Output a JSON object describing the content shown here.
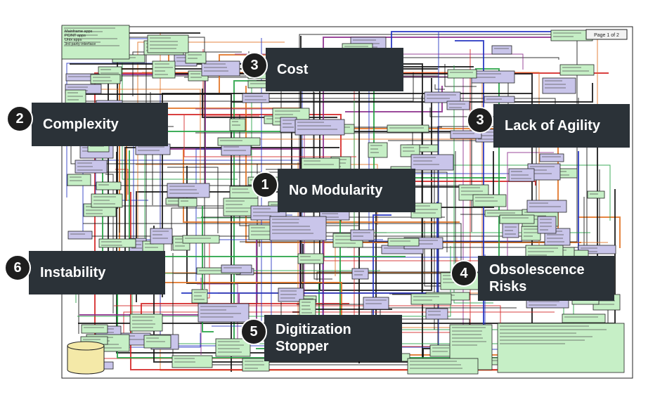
{
  "legend": {
    "lines": [
      "Mainframe apps",
      "PC/NT apps",
      "Unix apps",
      "3rd party interface"
    ]
  },
  "page_label": "Page 1 of 2",
  "colors": {
    "callout_bg": "#2b3238",
    "badge_bg": "#1e1e1e",
    "box_green": "#c6efc6",
    "box_purple": "#c9c5ea",
    "line_black": "#111111",
    "line_red": "#d22020",
    "line_blue": "#2030c0",
    "line_purple": "#8a2a8a",
    "line_green": "#20a040",
    "line_orange": "#e07020"
  },
  "callouts": [
    {
      "id": "cost",
      "number": "3",
      "lines": [
        "Cost"
      ]
    },
    {
      "id": "complexity",
      "number": "2",
      "lines": [
        "Complexity"
      ]
    },
    {
      "id": "lack-of-agility",
      "number": "3",
      "lines": [
        "Lack of Agility"
      ]
    },
    {
      "id": "no-modularity",
      "number": "1",
      "lines": [
        "No Modularity"
      ]
    },
    {
      "id": "instability",
      "number": "6",
      "lines": [
        "Instability"
      ]
    },
    {
      "id": "obsolescence-risks",
      "number": "4",
      "lines": [
        "Obsolescence",
        "Risks"
      ]
    },
    {
      "id": "digitization-stopper",
      "number": "5",
      "lines": [
        "Digitization",
        "Stopper"
      ]
    }
  ]
}
